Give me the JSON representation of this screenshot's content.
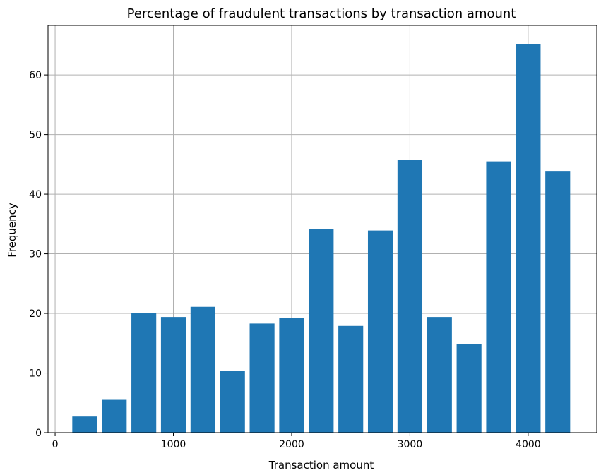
{
  "chart_data": {
    "type": "bar",
    "title": "Percentage of fraudulent transactions by transaction amount",
    "xlabel": "Transaction amount",
    "ylabel": "Frequency",
    "xlim": [
      -60,
      4580
    ],
    "ylim": [
      0,
      68.3
    ],
    "grid": true,
    "bar_width": 210,
    "bar_color": "#1f77b4",
    "x_ticks": [
      0,
      1000,
      2000,
      3000,
      4000
    ],
    "x_tick_labels": [
      "0",
      "1000",
      "2000",
      "3000",
      "4000"
    ],
    "y_ticks": [
      0,
      10,
      20,
      30,
      40,
      50,
      60
    ],
    "y_tick_labels": [
      "0",
      "10",
      "20",
      "30",
      "40",
      "50",
      "60"
    ],
    "x": [
      250,
      500,
      750,
      1000,
      1250,
      1500,
      1750,
      2000,
      2250,
      2500,
      2750,
      3000,
      3250,
      3500,
      3750,
      4000,
      4250
    ],
    "values": [
      2.7,
      5.5,
      20.1,
      19.4,
      21.1,
      10.3,
      18.3,
      19.2,
      34.2,
      17.9,
      33.9,
      45.8,
      19.4,
      14.9,
      45.5,
      65.2,
      43.9
    ]
  }
}
